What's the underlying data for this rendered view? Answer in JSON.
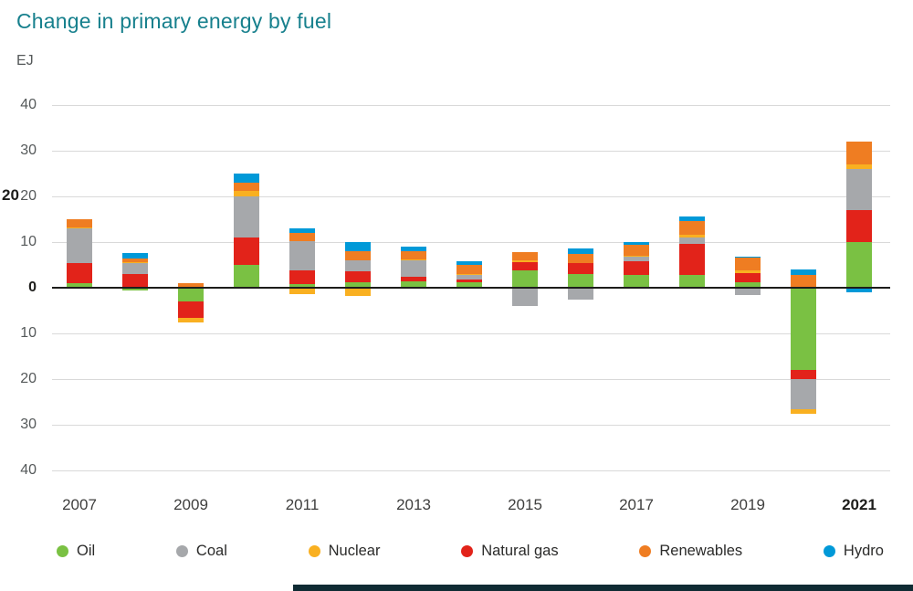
{
  "page": {
    "page_number": "20"
  },
  "chart_data": {
    "type": "bar",
    "stacked": true,
    "title": "Change in primary energy by fuel",
    "ylabel": "EJ",
    "ylim": [
      -40,
      40
    ],
    "y_ticks": [
      40,
      30,
      20,
      10,
      0,
      -10,
      -20,
      -30,
      -40
    ],
    "grid": true,
    "legend_position": "bottom",
    "years": [
      2007,
      2008,
      2009,
      2010,
      2011,
      2012,
      2013,
      2014,
      2015,
      2016,
      2017,
      2018,
      2019,
      2020,
      2021
    ],
    "x_tick_years": [
      2007,
      2009,
      2011,
      2013,
      2015,
      2017,
      2019,
      2021
    ],
    "bold_year": 2021,
    "legend_order": [
      "Oil",
      "Coal",
      "Nuclear",
      "Natural gas",
      "Renewables",
      "Hydro"
    ],
    "series": [
      {
        "name": "Oil",
        "color": "#7ac143",
        "values": [
          1.0,
          -0.5,
          -3.0,
          5.0,
          0.8,
          1.2,
          1.5,
          1.3,
          3.9,
          3.0,
          2.8,
          2.8,
          1.2,
          -18.0,
          10.0
        ]
      },
      {
        "name": "Natural gas",
        "color": "#e2231a",
        "values": [
          4.5,
          3.0,
          -3.5,
          6.0,
          3.0,
          2.5,
          1.0,
          0.5,
          1.8,
          2.5,
          3.0,
          6.8,
          2.0,
          -2.0,
          7.0
        ]
      },
      {
        "name": "Coal",
        "color": "#a6a8ab",
        "values": [
          7.5,
          2.5,
          0.3,
          9.0,
          6.5,
          2.3,
          3.5,
          1.0,
          -4.0,
          -2.5,
          1.0,
          1.5,
          -1.5,
          -6.5,
          9.0
        ]
      },
      {
        "name": "Nuclear",
        "color": "#f9b021",
        "values": [
          0.3,
          0.2,
          -1.0,
          1.3,
          -1.3,
          -1.8,
          0.3,
          0.3,
          0.3,
          0.0,
          0.3,
          0.5,
          0.6,
          -1.0,
          1.0
        ]
      },
      {
        "name": "Renewables",
        "color": "#ef7d22",
        "values": [
          1.7,
          0.8,
          0.8,
          1.7,
          1.7,
          2.0,
          1.7,
          1.9,
          1.8,
          2.0,
          2.4,
          3.0,
          2.8,
          2.8,
          5.0
        ]
      },
      {
        "name": "Hydro",
        "color": "#0099d8",
        "values": [
          0.0,
          1.1,
          0.0,
          2.0,
          1.0,
          2.0,
          1.0,
          0.8,
          0.0,
          1.1,
          0.5,
          1.0,
          0.3,
          1.2,
          -1.0
        ]
      }
    ]
  }
}
